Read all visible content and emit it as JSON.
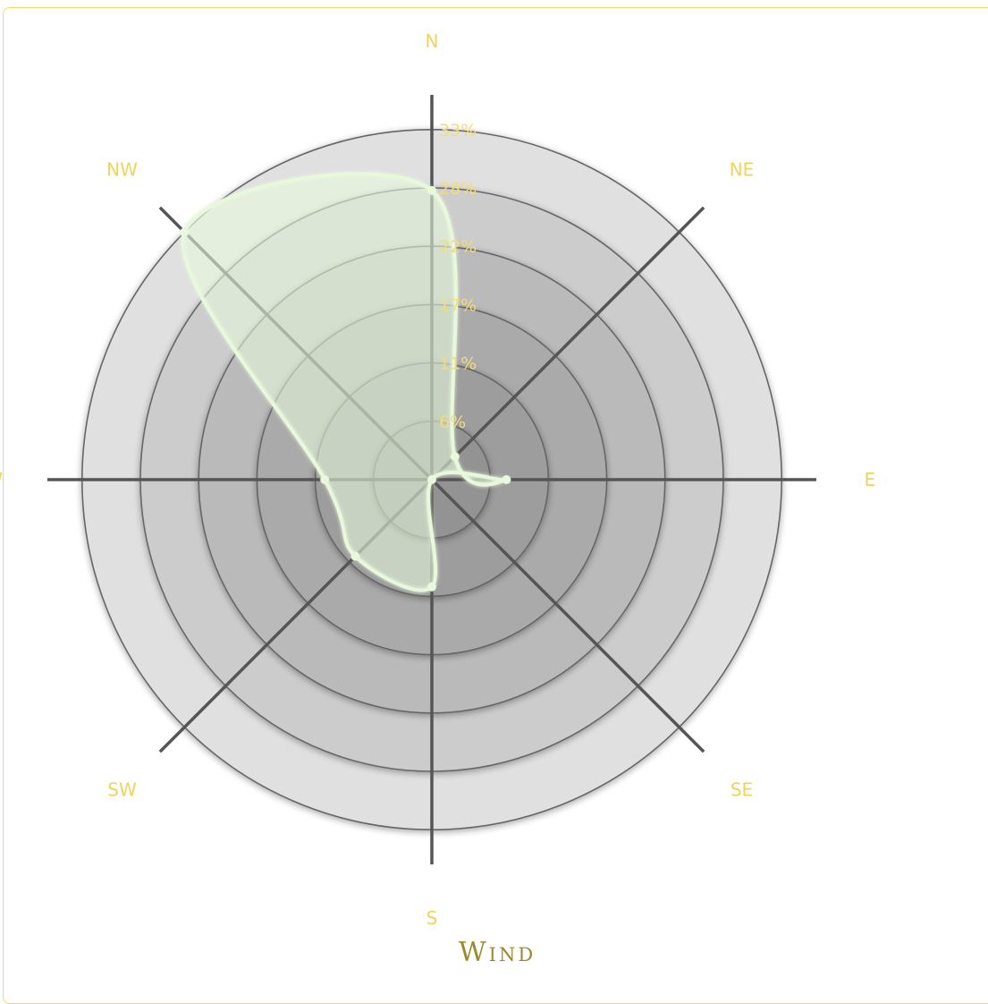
{
  "chart_data": {
    "type": "radar",
    "title": "Wind",
    "directions": [
      "N",
      "NE",
      "E",
      "SE",
      "S",
      "SW",
      "W",
      "NW"
    ],
    "axis_labels": [
      "N",
      "NE",
      "E",
      "SE",
      "S",
      "SW",
      "W",
      "NW"
    ],
    "radial_ticks": [
      "6%",
      "11%",
      "17%",
      "22%",
      "28%",
      "33%"
    ],
    "radial_max": 33.3,
    "grid": true,
    "series": [
      {
        "values": [
          27.5,
          3.1,
          7.1,
          0.0,
          10.2,
          10.3,
          10.2,
          33.3
        ],
        "color": "#e8f8dc"
      }
    ],
    "colors": {
      "label": "#f0d35c",
      "title": "#9c8a2c",
      "series": "#e8f8dc",
      "axis": "#555555",
      "border": "#f2da6a"
    }
  }
}
